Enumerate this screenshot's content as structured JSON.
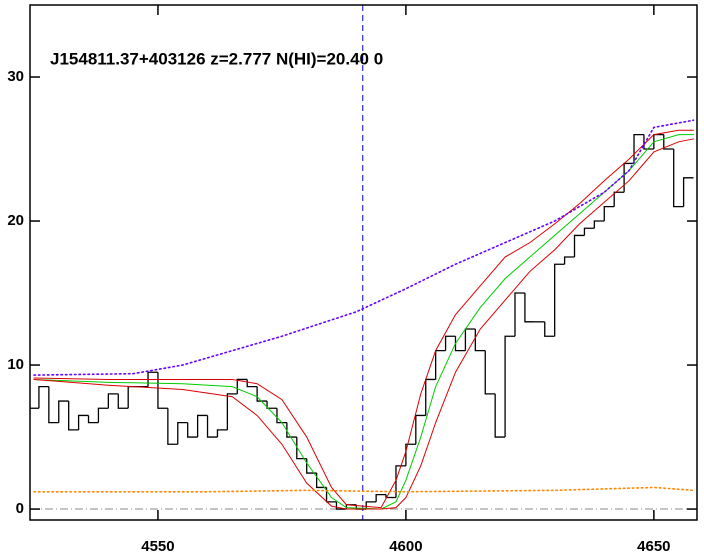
{
  "chart_data": {
    "type": "line",
    "title": "J154811.37+403126 z=2.777 N(HI)=20.40 0",
    "xlim": [
      4524.2,
      4658.7
    ],
    "ylim": [
      -0.76,
      35
    ],
    "xticks": [
      4550,
      4600,
      4650
    ],
    "yticks": [
      0,
      10,
      20,
      30
    ],
    "vline": 4591.3,
    "hline": 0,
    "series": [
      {
        "color": "#000000",
        "style": "step",
        "x": [
          4525,
          4527,
          4529,
          4531,
          4533,
          4535,
          4537,
          4539,
          4541,
          4543,
          4545,
          4547,
          4549,
          4551,
          4553,
          4555,
          4557,
          4559,
          4561,
          4563,
          4565,
          4567,
          4569,
          4571,
          4573,
          4575,
          4577,
          4579,
          4581,
          4583,
          4585,
          4587,
          4589,
          4591,
          4593,
          4595,
          4597,
          4599,
          4601,
          4603,
          4605,
          4607,
          4609,
          4611,
          4613,
          4615,
          4617,
          4619,
          4621,
          4623,
          4625,
          4627,
          4629,
          4631,
          4633,
          4635,
          4637,
          4639,
          4641,
          4643,
          4645,
          4647,
          4649,
          4651,
          4653,
          4655,
          4657
        ],
        "values": [
          7,
          8.5,
          6,
          7.5,
          5.5,
          6.5,
          6,
          7,
          8,
          7,
          8.5,
          8.5,
          9.5,
          7,
          4.5,
          6,
          5,
          6.5,
          5,
          5.5,
          8,
          9,
          8.5,
          7.5,
          7,
          6,
          5,
          3.5,
          2.5,
          1.5,
          0.5,
          0,
          0.3,
          0,
          0.5,
          1,
          0.8,
          3,
          4.5,
          6.5,
          9,
          11,
          12,
          11,
          12.5,
          11,
          8,
          5,
          12,
          15,
          13,
          13,
          12,
          17,
          17.5,
          19,
          19.5,
          20,
          21,
          22,
          24,
          26,
          25,
          26,
          25,
          21,
          23
        ]
      },
      {
        "color": "#00cc00",
        "style": "solid",
        "x": [
          4525,
          4540,
          4555,
          4565,
          4570,
          4575,
          4580,
          4585,
          4588,
          4595,
          4598,
          4600,
          4603,
          4606,
          4610,
          4615,
          4620,
          4625,
          4630,
          4635,
          4640,
          4645,
          4650,
          4655,
          4658
        ],
        "values": [
          9.0,
          8.8,
          8.7,
          8.5,
          7.8,
          6.0,
          3.2,
          0.8,
          0.1,
          0,
          0.5,
          2,
          5,
          8.5,
          11.5,
          14,
          16,
          17.5,
          19,
          20.5,
          22,
          23.5,
          25.5,
          26,
          26
        ]
      },
      {
        "color": "#dd0000",
        "style": "solid",
        "x": [
          4525,
          4540,
          4555,
          4565,
          4570,
          4575,
          4580,
          4585,
          4588,
          4595,
          4598,
          4600,
          4603,
          4606,
          4610,
          4615,
          4620,
          4625,
          4630,
          4635,
          4640,
          4645,
          4650,
          4655,
          4658
        ],
        "values": [
          9.1,
          9.0,
          9.0,
          9.0,
          8.7,
          7.6,
          5,
          1.5,
          0.3,
          0.1,
          2,
          4,
          8,
          11,
          13.5,
          15.5,
          17.5,
          18.5,
          19.8,
          21.2,
          22.8,
          24.3,
          26,
          26.3,
          26.3
        ]
      },
      {
        "color": "#dd0000",
        "style": "solid",
        "x": [
          4525,
          4540,
          4555,
          4565,
          4570,
          4575,
          4580,
          4585,
          4588,
          4595,
          4598,
          4600,
          4603,
          4606,
          4610,
          4615,
          4620,
          4625,
          4630,
          4635,
          4640,
          4645,
          4650,
          4655,
          4658
        ],
        "values": [
          9.0,
          8.6,
          8.3,
          7.8,
          6.5,
          4.5,
          1.8,
          0.2,
          0,
          0,
          0.1,
          0.8,
          3,
          6,
          9.5,
          12.5,
          14.5,
          16.5,
          18,
          19.8,
          21.3,
          22.8,
          24.8,
          25.5,
          25.7
        ]
      },
      {
        "color": "#6600ff",
        "style": "dotted",
        "x": [
          4525,
          4545,
          4555,
          4565,
          4575,
          4590,
          4600,
          4610,
          4620,
          4630,
          4640,
          4645,
          4650,
          4658
        ],
        "values": [
          9.3,
          9.4,
          10,
          11,
          12,
          13.7,
          15.3,
          17,
          18.5,
          20,
          22,
          23.5,
          26.5,
          27
        ]
      },
      {
        "color": "#ff8800",
        "style": "dotted",
        "x": [
          4525,
          4560,
          4580,
          4600,
          4630,
          4650,
          4658
        ],
        "values": [
          1.2,
          1.2,
          1.3,
          1.2,
          1.3,
          1.5,
          1.3
        ]
      }
    ]
  }
}
